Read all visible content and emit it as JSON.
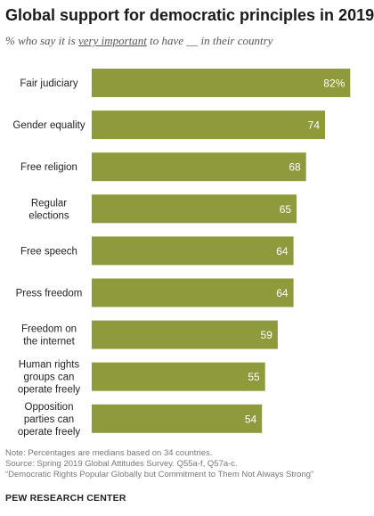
{
  "title": "Global support for democratic principles in 2019",
  "subtitle": {
    "before": "% who say it is ",
    "emphasis": "very important",
    "after": " to have __ in their country"
  },
  "colors": {
    "bar": "#8f9a3c",
    "label_in_bar": "#ffffff",
    "category_text": "#222222"
  },
  "chart_data": {
    "type": "bar",
    "orientation": "horizontal",
    "categories": [
      "Fair judiciary",
      "Gender equality",
      "Free religion",
      "Regular elections",
      "Free speech",
      "Press freedom",
      "Freedom on the internet",
      "Human rights groups can operate freely",
      "Opposition parties can operate freely"
    ],
    "category_lines": [
      [
        "Fair judiciary"
      ],
      [
        "Gender equality"
      ],
      [
        "Free religion"
      ],
      [
        "Regular",
        "elections"
      ],
      [
        "Free speech"
      ],
      [
        "Press freedom"
      ],
      [
        "Freedom on",
        "the internet"
      ],
      [
        "Human rights",
        "groups can",
        "operate freely"
      ],
      [
        "Opposition",
        "parties can",
        "operate freely"
      ]
    ],
    "values": [
      82,
      74,
      68,
      65,
      64,
      64,
      59,
      55,
      54
    ],
    "value_labels": [
      "82%",
      "74",
      "68",
      "65",
      "64",
      "64",
      "59",
      "55",
      "54"
    ],
    "xlim": [
      0,
      100
    ],
    "grid": false,
    "legend": "none"
  },
  "notes": {
    "note": "Note: Percentages are medians based on 34 countries.",
    "source": "Source: Spring 2019 Global Attitudes Survey. Q55a-f, Q57a-c.",
    "report": "“Democratic Rights Popular Globally but Commitment to Them Not Always Strong”"
  },
  "org": "PEW RESEARCH CENTER"
}
